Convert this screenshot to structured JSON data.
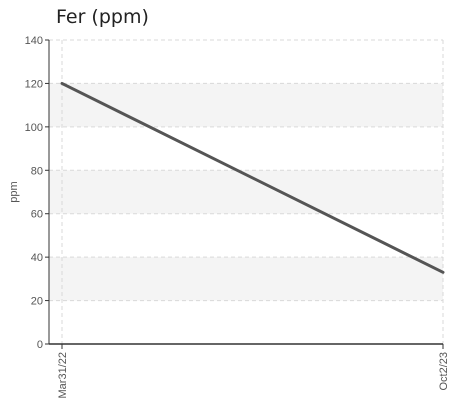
{
  "chart_data": {
    "type": "line",
    "title": "Fer (ppm)",
    "ylabel": "ppm",
    "xlabel": "",
    "ylim": [
      0,
      140
    ],
    "yticks": [
      0,
      20,
      40,
      60,
      80,
      100,
      120,
      140
    ],
    "x": [
      "Mar31/22",
      "Oct2/23"
    ],
    "series": [
      {
        "values": [
          120,
          33
        ]
      }
    ],
    "colors": {
      "line": "#555555",
      "band": "#f4f4f4",
      "grid": "#d9d9d9",
      "axis": "#333333"
    },
    "grid": true
  }
}
